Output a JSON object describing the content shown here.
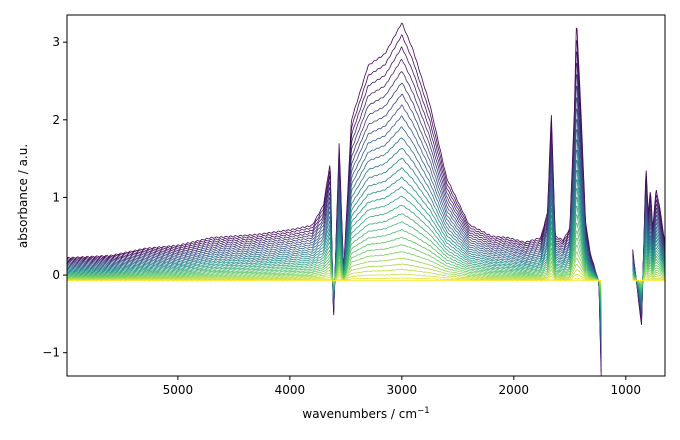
{
  "chart_data": {
    "type": "line",
    "title": "",
    "xlabel": "wavenumbers / cm",
    "xlabel_superscript": "−1",
    "ylabel": "absorbance / a.u.",
    "xlim": [
      5990,
      650
    ],
    "ylim": [
      -1.3,
      3.35
    ],
    "x_reversed": true,
    "x_ticks": [
      5000,
      4000,
      3000,
      2000,
      1000
    ],
    "y_ticks": [
      -1,
      0,
      1,
      2,
      3
    ],
    "y_tick_labels": [
      "−1",
      "0",
      "1",
      "2",
      "3"
    ],
    "colormap": "viridis",
    "colormap_stops": [
      "#440154",
      "#3b528b",
      "#21918c",
      "#5ec962",
      "#fde725"
    ],
    "n_series": 30,
    "max_curve_intensity": 1.0,
    "min_curve_intensity": 0.0,
    "gap_region_cm": [
      1220,
      940
    ],
    "reference_profile_max": {
      "wavenumber": [
        5990,
        5600,
        5300,
        5000,
        4700,
        4300,
        4000,
        3800,
        3700,
        3640,
        3610,
        3560,
        3520,
        3450,
        3300,
        3150,
        3000,
        2900,
        2750,
        2600,
        2400,
        2200,
        2050,
        1900,
        1760,
        1700,
        1665,
        1630,
        1560,
        1500,
        1460,
        1440,
        1400,
        1360,
        1320,
        1280,
        1240,
        1220,
        940,
        900,
        860,
        820,
        800,
        780,
        760,
        730,
        700,
        680,
        660,
        650
      ],
      "absorbance": [
        0.22,
        0.25,
        0.34,
        0.38,
        0.48,
        0.52,
        0.58,
        0.64,
        0.9,
        1.45,
        -0.6,
        1.7,
        0.05,
        2.0,
        2.7,
        2.85,
        3.25,
        2.9,
        2.2,
        1.25,
        0.65,
        0.5,
        0.48,
        0.42,
        0.48,
        0.8,
        2.1,
        0.5,
        0.45,
        0.6,
        2.1,
        3.3,
        2.1,
        0.7,
        0.3,
        0.1,
        -0.1,
        -1.3,
        0.35,
        -0.15,
        -0.65,
        1.4,
        0.8,
        1.1,
        0.6,
        1.1,
        0.9,
        0.7,
        0.5,
        0.4
      ]
    }
  }
}
